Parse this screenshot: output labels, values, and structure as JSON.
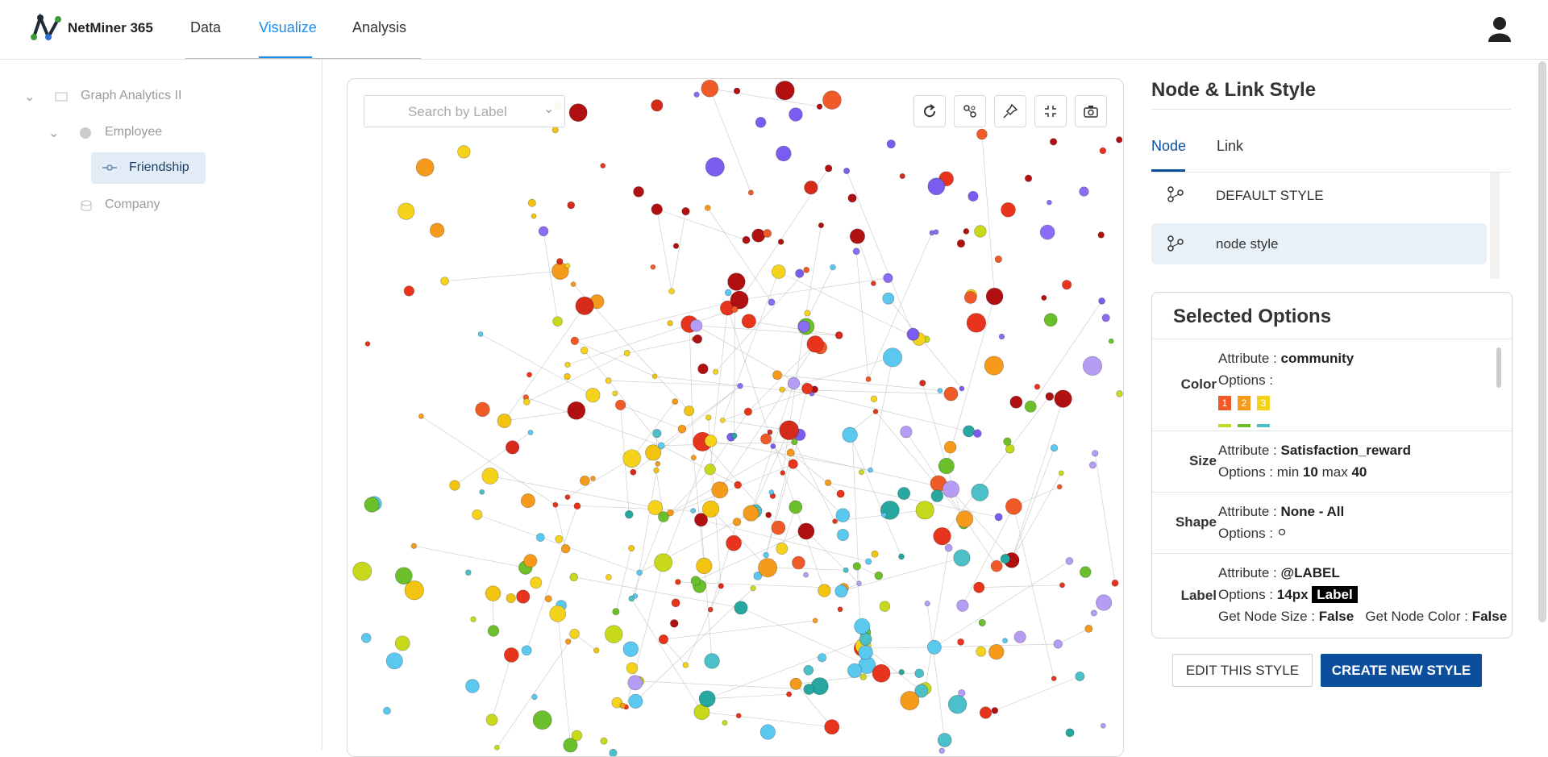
{
  "header": {
    "app_name": "NetMiner 365",
    "nav": [
      "Data",
      "Visualize",
      "Analysis"
    ]
  },
  "sidebar": {
    "project": "Graph Analytics II",
    "node_set": "Employee",
    "link_set": "Friendship",
    "other_node_set": "Company"
  },
  "graph": {
    "search_placeholder": "Search by Label"
  },
  "style_panel": {
    "title": "Node & Link Style",
    "tabs": [
      "Node",
      "Link"
    ],
    "styles": [
      "DEFAULT STYLE",
      "node style"
    ]
  },
  "selected_options": {
    "title": "Selected Options",
    "color": {
      "name": "Color",
      "attribute_label": "Attribute :",
      "attribute": "community",
      "options_label": "Options :",
      "swatches": [
        "1",
        "2",
        "3"
      ]
    },
    "size": {
      "name": "Size",
      "attribute_label": "Attribute :",
      "attribute": "Satisfaction_reward",
      "options_label": "Options :",
      "min_label": "min",
      "min": 10,
      "max_label": "max",
      "max": 40
    },
    "shape": {
      "name": "Shape",
      "attribute_label": "Attribute :",
      "attribute": "None - All",
      "options_label": "Options :"
    },
    "label": {
      "name": "Label",
      "attribute_label": "Attribute :",
      "attribute": "@LABEL",
      "options_label": "Options :",
      "font_size": "14px",
      "preview": "Label",
      "node_size_label": "Get Node Size :",
      "node_size": "False",
      "node_color_label": "Get Node Color :",
      "node_color": "False"
    }
  },
  "buttons": [
    "EDIT THIS STYLE",
    "CREATE NEW STYLE"
  ]
}
